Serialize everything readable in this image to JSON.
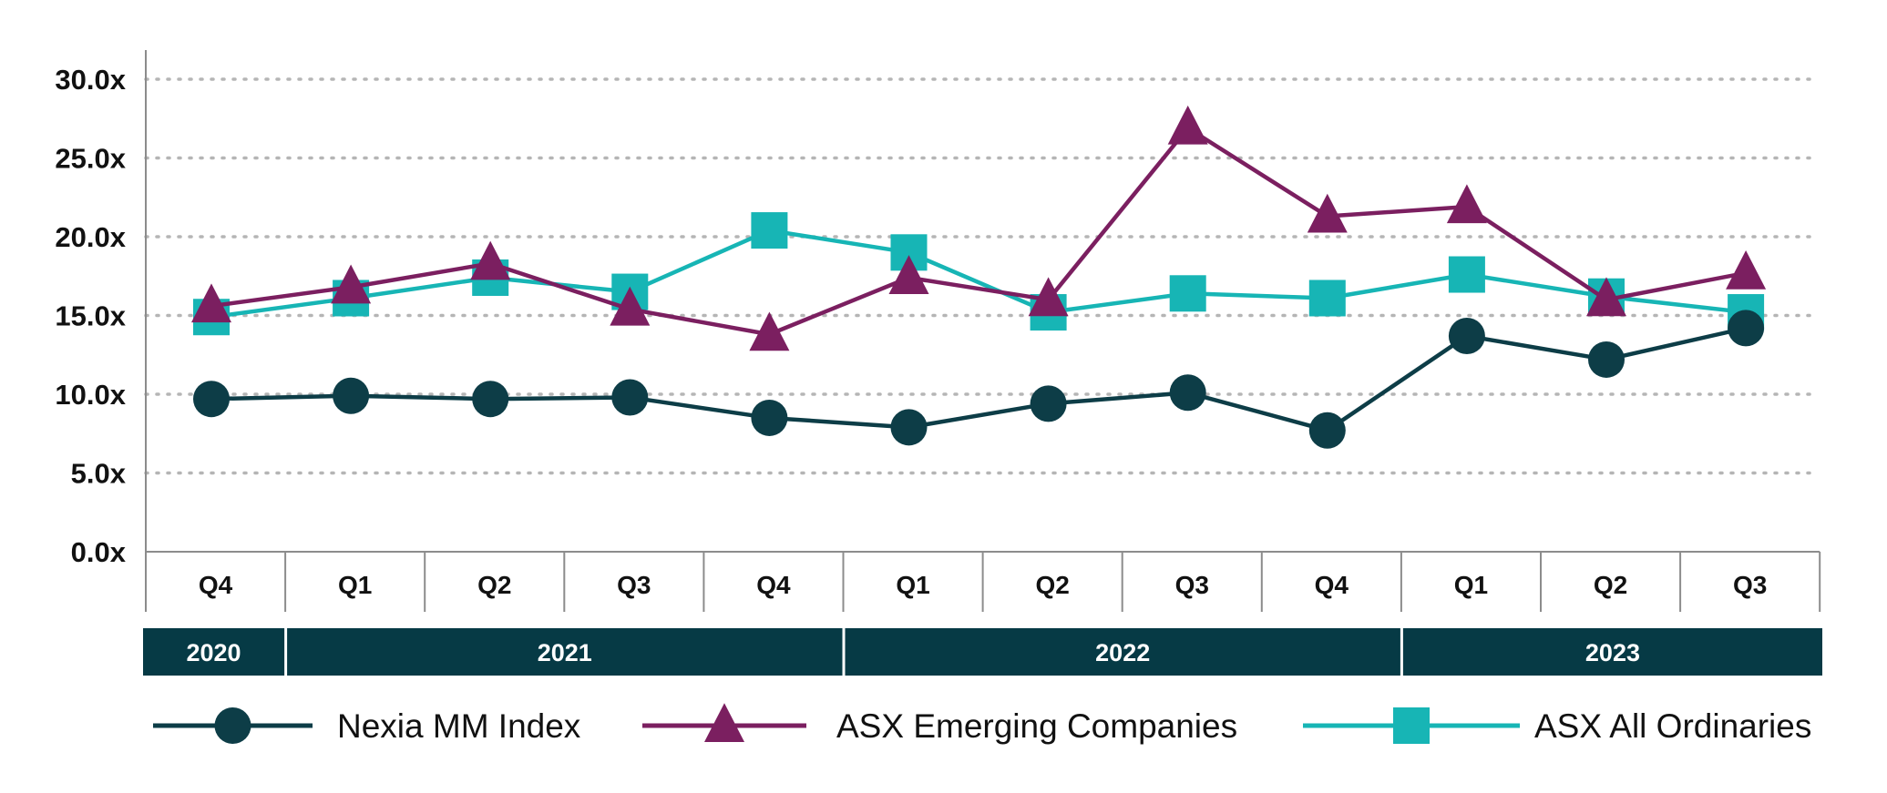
{
  "colors": {
    "nexia": "#0d3d47",
    "asx_emerging": "#7b1f60",
    "asx_all_ords": "#17b5b5",
    "year_band": "#063a45",
    "grid": "#b5b5b5",
    "axis": "#8c8c8c"
  },
  "chart_data": {
    "type": "line",
    "y_tick_labels": [
      "0.0x",
      "5.0x",
      "10.0x",
      "15.0x",
      "20.0x",
      "25.0x",
      "30.0x"
    ],
    "y_ticks": [
      0,
      5,
      10,
      15,
      20,
      25,
      30
    ],
    "ylim": [
      0,
      30
    ],
    "grid": "horizontal dotted",
    "categories": [
      "Q4",
      "Q1",
      "Q2",
      "Q3",
      "Q4",
      "Q1",
      "Q2",
      "Q3",
      "Q4",
      "Q1",
      "Q2",
      "Q3"
    ],
    "years": [
      {
        "label": "2020",
        "start": 0,
        "end": 0
      },
      {
        "label": "2021",
        "start": 1,
        "end": 4
      },
      {
        "label": "2022",
        "start": 5,
        "end": 8
      },
      {
        "label": "2023",
        "start": 9,
        "end": 11
      }
    ],
    "series": [
      {
        "name": "Nexia MM Index",
        "key": "nexia",
        "marker": "circle",
        "values": [
          9.7,
          9.9,
          9.7,
          9.8,
          8.5,
          7.9,
          9.4,
          10.1,
          7.7,
          13.7,
          12.2,
          14.2
        ]
      },
      {
        "name": "ASX Emerging Companies",
        "key": "asx_emerging",
        "marker": "triangle",
        "values": [
          15.6,
          16.8,
          18.3,
          15.4,
          13.8,
          17.4,
          16.0,
          26.9,
          21.3,
          21.9,
          16.0,
          17.7
        ]
      },
      {
        "name": "ASX All Ordinaries",
        "key": "asx_all_ords",
        "marker": "square",
        "values": [
          14.9,
          16.1,
          17.4,
          16.5,
          20.4,
          19.0,
          15.2,
          16.4,
          16.1,
          17.6,
          16.2,
          15.2
        ]
      }
    ],
    "legend_position": "bottom"
  }
}
